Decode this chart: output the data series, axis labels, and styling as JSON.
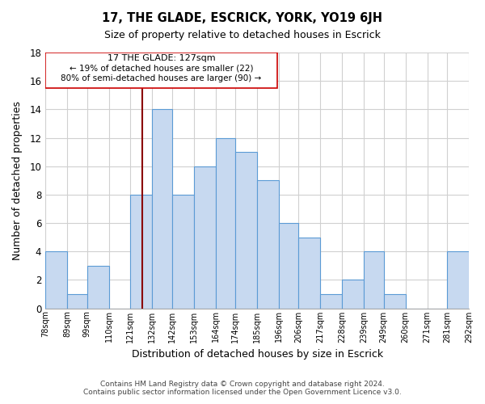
{
  "title": "17, THE GLADE, ESCRICK, YORK, YO19 6JH",
  "subtitle": "Size of property relative to detached houses in Escrick",
  "xlabel": "Distribution of detached houses by size in Escrick",
  "ylabel": "Number of detached properties",
  "footer_lines": [
    "Contains HM Land Registry data © Crown copyright and database right 2024.",
    "Contains public sector information licensed under the Open Government Licence v3.0."
  ],
  "bar_edges": [
    78,
    89,
    99,
    110,
    121,
    132,
    142,
    153,
    164,
    174,
    185,
    196,
    206,
    217,
    228,
    239,
    249,
    260,
    271,
    281,
    292
  ],
  "bar_heights": [
    4,
    1,
    3,
    0,
    8,
    14,
    8,
    10,
    12,
    11,
    9,
    6,
    5,
    1,
    2,
    4,
    1,
    0,
    0,
    4
  ],
  "bar_color": "#c7d9f0",
  "bar_edge_color": "#5b9bd5",
  "vline_x": 127,
  "vline_color": "#8b0000",
  "annotation_title": "17 THE GLADE: 127sqm",
  "annotation_line1": "← 19% of detached houses are smaller (22)",
  "annotation_line2": "80% of semi-detached houses are larger (90) →",
  "xlim": [
    78,
    292
  ],
  "ylim": [
    0,
    18
  ],
  "yticks": [
    0,
    2,
    4,
    6,
    8,
    10,
    12,
    14,
    16,
    18
  ],
  "tick_labels": [
    "78sqm",
    "89sqm",
    "99sqm",
    "110sqm",
    "121sqm",
    "132sqm",
    "142sqm",
    "153sqm",
    "164sqm",
    "174sqm",
    "185sqm",
    "196sqm",
    "206sqm",
    "217sqm",
    "228sqm",
    "239sqm",
    "249sqm",
    "260sqm",
    "271sqm",
    "281sqm",
    "292sqm"
  ],
  "grid_color": "#d0d0d0",
  "background_color": "#ffffff"
}
